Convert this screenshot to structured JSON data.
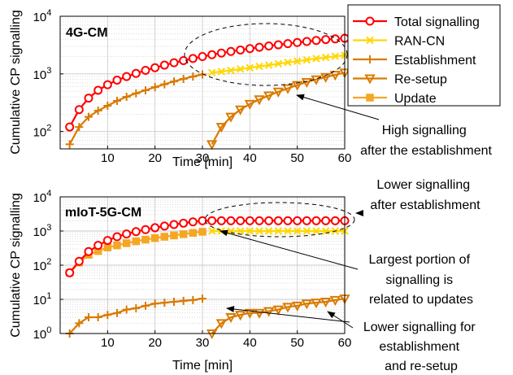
{
  "colors": {
    "total": "#ff0000",
    "rancn": "#ffd700",
    "establishment": "#d97a00",
    "resetup": "#d97a00",
    "update": "#f5a623",
    "grid": "#c8c8c8"
  },
  "legend": {
    "placement": "top-right",
    "entries": [
      {
        "key": "total",
        "label": "Total signalling",
        "marker": "circle"
      },
      {
        "key": "rancn",
        "label": "RAN-CN",
        "marker": "x"
      },
      {
        "key": "establishment",
        "label": "Establishment",
        "marker": "plus"
      },
      {
        "key": "resetup",
        "label": "Re-setup",
        "marker": "triangle-down"
      },
      {
        "key": "update",
        "label": "Update",
        "marker": "square"
      }
    ]
  },
  "chart_data": [
    {
      "type": "line",
      "title": "4G-CM",
      "xlabel": "Time [min]",
      "ylabel": "Cumulative CP signalling",
      "xlim": [
        0,
        60
      ],
      "ylim": [
        50,
        10000
      ],
      "yscale": "log",
      "xticks": [
        "10",
        "20",
        "30",
        "40",
        "50",
        "60"
      ],
      "yticks": [
        "10^2",
        "10^3",
        "10^4"
      ],
      "grid": true,
      "series": [
        {
          "name": "Total signalling",
          "key": "total",
          "x": [
            2,
            4,
            6,
            8,
            10,
            12,
            14,
            16,
            18,
            20,
            22,
            24,
            26,
            28,
            30,
            32,
            34,
            36,
            38,
            40,
            42,
            44,
            46,
            48,
            50,
            52,
            54,
            56,
            58,
            60
          ],
          "y": [
            120,
            240,
            380,
            520,
            650,
            780,
            900,
            1020,
            1150,
            1280,
            1420,
            1560,
            1700,
            1850,
            2000,
            2150,
            2300,
            2450,
            2600,
            2750,
            2900,
            3050,
            3200,
            3350,
            3500,
            3650,
            3800,
            3950,
            4050,
            4150
          ]
        },
        {
          "name": "RAN-CN",
          "key": "rancn",
          "x": [
            32,
            34,
            36,
            38,
            40,
            42,
            44,
            46,
            48,
            50,
            52,
            54,
            56,
            58,
            60
          ],
          "y": [
            1050,
            1100,
            1150,
            1210,
            1280,
            1350,
            1420,
            1500,
            1580,
            1660,
            1750,
            1840,
            1930,
            2020,
            2100
          ]
        },
        {
          "name": "Establishment",
          "key": "establishment",
          "x": [
            2,
            4,
            6,
            8,
            10,
            12,
            14,
            16,
            18,
            20,
            22,
            24,
            26,
            28,
            30
          ],
          "y": [
            60,
            120,
            180,
            230,
            280,
            340,
            400,
            460,
            520,
            590,
            660,
            740,
            820,
            900,
            980
          ]
        },
        {
          "name": "Re-setup",
          "key": "resetup",
          "x": [
            32,
            34,
            36,
            38,
            40,
            42,
            44,
            46,
            48,
            50,
            52,
            54,
            56,
            58,
            60
          ],
          "y": [
            60,
            120,
            180,
            240,
            300,
            360,
            420,
            490,
            560,
            640,
            720,
            800,
            880,
            960,
            1050
          ]
        }
      ],
      "annotations": [
        {
          "text_lines": [
            "High signalling",
            "after the establishment"
          ]
        }
      ]
    },
    {
      "type": "line",
      "title": "mIoT-5G-CM",
      "xlabel": "Time [min]",
      "ylabel": "Cumulative CP signalling",
      "xlim": [
        0,
        60
      ],
      "ylim": [
        1,
        10000
      ],
      "yscale": "log",
      "xticks": [
        "10",
        "20",
        "30",
        "40",
        "50",
        "60"
      ],
      "yticks": [
        "10^0",
        "10^1",
        "10^2",
        "10^3",
        "10^4"
      ],
      "grid": true,
      "series": [
        {
          "name": "Total signalling",
          "key": "total",
          "x": [
            2,
            4,
            6,
            8,
            10,
            12,
            14,
            16,
            18,
            20,
            22,
            24,
            26,
            28,
            30,
            32,
            34,
            36,
            38,
            40,
            42,
            44,
            46,
            48,
            50,
            52,
            54,
            56,
            58,
            60
          ],
          "y": [
            60,
            130,
            250,
            380,
            530,
            680,
            820,
            960,
            1100,
            1250,
            1400,
            1550,
            1700,
            1850,
            2000,
            2000,
            2000,
            2000,
            2000,
            2000,
            2000,
            2000,
            2000,
            2000,
            2000,
            2000,
            2000,
            2000,
            2000,
            2000
          ]
        },
        {
          "name": "RAN-CN",
          "key": "rancn",
          "x": [
            32,
            34,
            36,
            38,
            40,
            42,
            44,
            46,
            48,
            50,
            52,
            54,
            56,
            58,
            60
          ],
          "y": [
            1000,
            1000,
            1000,
            1000,
            1000,
            1000,
            1000,
            1000,
            1000,
            1000,
            1000,
            1000,
            1000,
            1000,
            1000
          ]
        },
        {
          "name": "Establishment",
          "key": "establishment",
          "x": [
            2,
            4,
            6,
            8,
            10,
            12,
            14,
            16,
            18,
            20,
            22,
            24,
            26,
            28,
            30
          ],
          "y": [
            1,
            2,
            3,
            3,
            3.5,
            4,
            5,
            5.5,
            6.5,
            7.5,
            8,
            8.5,
            9,
            9.5,
            10.5
          ]
        },
        {
          "name": "Re-setup",
          "key": "resetup",
          "x": [
            32,
            34,
            36,
            38,
            40,
            42,
            44,
            46,
            48,
            50,
            52,
            54,
            56,
            58,
            60
          ],
          "y": [
            1,
            2,
            3,
            3.5,
            4,
            4,
            4.5,
            5,
            6,
            6.5,
            7.5,
            8,
            8.5,
            9.5,
            10.5
          ]
        },
        {
          "name": "Update",
          "key": "update",
          "x": [
            2,
            4,
            6,
            8,
            10,
            12,
            14,
            16,
            18,
            20,
            22,
            24,
            26,
            28,
            30
          ],
          "y": [
            60,
            120,
            200,
            260,
            330,
            380,
            440,
            500,
            560,
            620,
            680,
            740,
            810,
            880,
            950
          ]
        }
      ],
      "annotations": [
        {
          "text_lines": [
            "Lower signalling",
            "after establishment"
          ]
        },
        {
          "text_lines": [
            "Largest portion of",
            "signalling is",
            "related to updates"
          ]
        },
        {
          "text_lines": [
            "Lower signalling for",
            "establishment",
            "and re-setup"
          ]
        }
      ]
    }
  ]
}
